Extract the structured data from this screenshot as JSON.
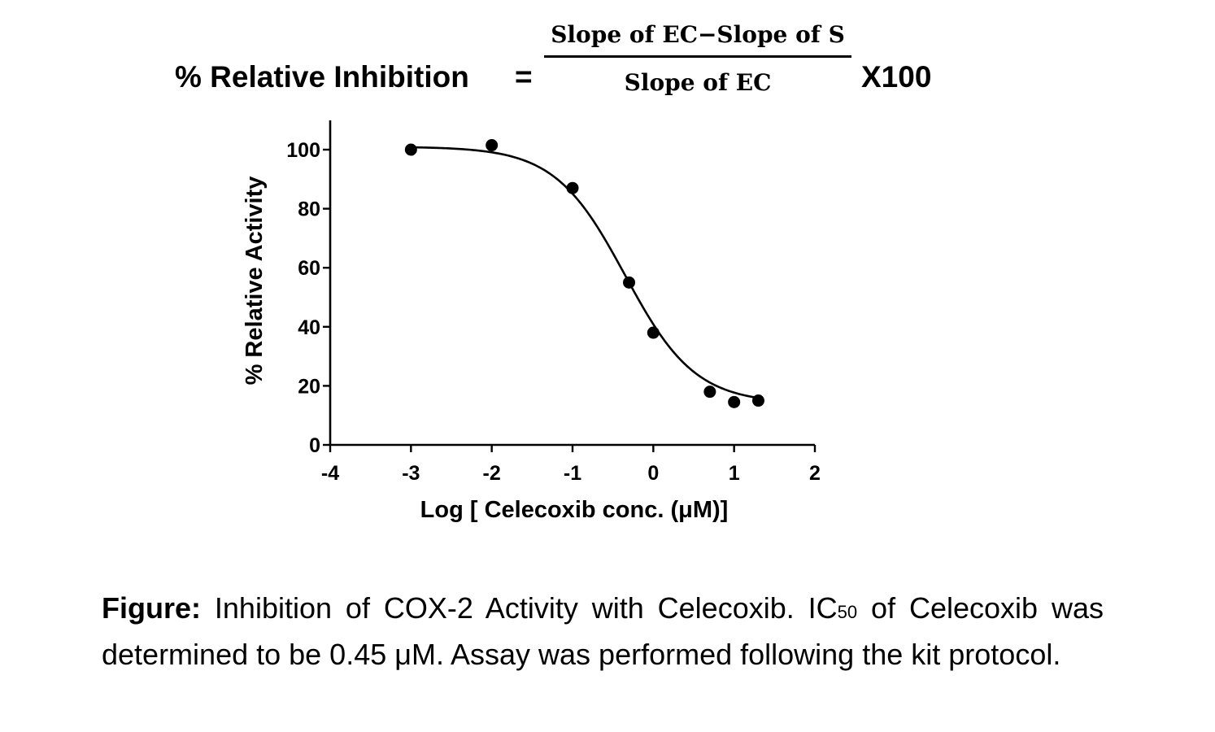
{
  "formula": {
    "lhs": "% Relative Inhibition",
    "equals": "=",
    "numerator": "Slope of EC−Slope of S",
    "denominator": "Slope of EC",
    "multiplier": "X100"
  },
  "chart_data": {
    "type": "scatter",
    "title": "",
    "xlabel": "Log [ Celecoxib conc.  (μM)]",
    "ylabel": "% Relative Activity",
    "xlim": [
      -4,
      2
    ],
    "ylim": [
      0,
      110
    ],
    "x_ticks": [
      -4,
      -3,
      -2,
      -1,
      0,
      1,
      2
    ],
    "y_ticks": [
      0,
      20,
      40,
      60,
      80,
      100
    ],
    "x_tick_labels": [
      "-4",
      "-3",
      "-2",
      "-1",
      "0",
      "1",
      "2"
    ],
    "y_tick_labels": [
      "0",
      "20",
      "40",
      "60",
      "80",
      "100"
    ],
    "grid": false,
    "series": [
      {
        "x": [
          -3,
          -2,
          -1,
          -0.3,
          0,
          0.7,
          1,
          1.3
        ],
        "y": [
          100,
          101.5,
          87,
          55,
          38,
          18,
          14.5,
          15
        ]
      }
    ],
    "fit_curve": {
      "type": "sigmoidal dose-response",
      "top": 101,
      "bottom": 14,
      "log_ic50": -0.35,
      "x_range": [
        -3,
        1.3
      ]
    }
  },
  "caption": {
    "lead": "Figure:",
    "text1": " Inhibition of COX-2 Activity with Celecoxib. IC",
    "subscript": "50",
    "text2": " of Celecoxib was determined to be 0.45 μM. Assay was performed following the kit protocol."
  }
}
